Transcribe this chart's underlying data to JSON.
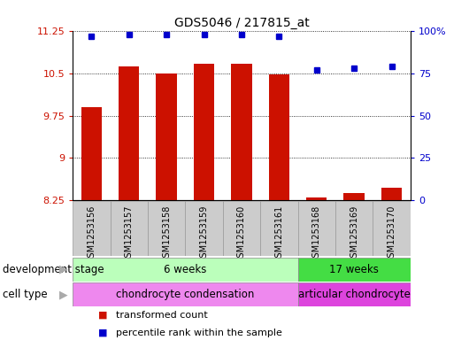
{
  "title": "GDS5046 / 217815_at",
  "samples": [
    "GSM1253156",
    "GSM1253157",
    "GSM1253158",
    "GSM1253159",
    "GSM1253160",
    "GSM1253161",
    "GSM1253168",
    "GSM1253169",
    "GSM1253170"
  ],
  "transformed_count": [
    9.9,
    10.62,
    10.5,
    10.67,
    10.67,
    10.48,
    8.3,
    8.38,
    8.47
  ],
  "percentile_rank": [
    97,
    98,
    98,
    98,
    98,
    97,
    77,
    78,
    79
  ],
  "ylim": [
    8.25,
    11.25
  ],
  "yticks": [
    8.25,
    9.0,
    9.75,
    10.5,
    11.25
  ],
  "ytick_labels": [
    "8.25",
    "9",
    "9.75",
    "10.5",
    "11.25"
  ],
  "right_yticks_val": [
    0,
    25,
    50,
    75,
    100
  ],
  "right_ytick_labels": [
    "0",
    "25",
    "50",
    "75",
    "100%"
  ],
  "bar_color": "#cc1100",
  "dot_color": "#0000cc",
  "bar_width": 0.55,
  "sample_box_color": "#cccccc",
  "sample_box_edge": "#999999",
  "development_stage_groups": [
    {
      "label": "6 weeks",
      "start": 0,
      "end": 6,
      "color": "#bbffbb"
    },
    {
      "label": "17 weeks",
      "start": 6,
      "end": 9,
      "color": "#44dd44"
    }
  ],
  "cell_type_groups": [
    {
      "label": "chondrocyte condensation",
      "start": 0,
      "end": 6,
      "color": "#ee88ee"
    },
    {
      "label": "articular chondrocyte",
      "start": 6,
      "end": 9,
      "color": "#dd44dd"
    }
  ],
  "legend_items": [
    {
      "color": "#cc1100",
      "label": "transformed count"
    },
    {
      "color": "#0000cc",
      "label": "percentile rank within the sample"
    }
  ],
  "dev_stage_label": "development stage",
  "cell_type_label": "cell type",
  "arrow_color": "#aaaaaa"
}
